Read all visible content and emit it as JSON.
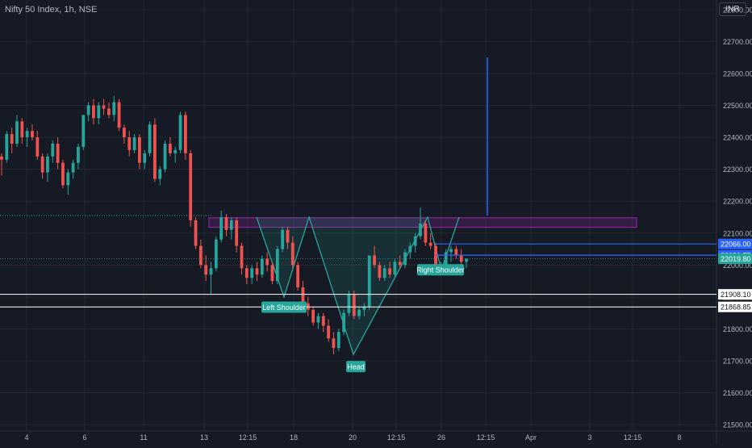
{
  "header": {
    "title": "Nifty 50 Index, 1h, NSE",
    "currency": "INR"
  },
  "colors": {
    "background": "#161a25",
    "grid": "#222631",
    "up": "#26a69a",
    "down": "#ef5350",
    "pattern": "#26a69a",
    "zone": "#9c27b0",
    "blue_line": "#2962ff",
    "axis_text": "#b2b5be"
  },
  "chart_data": {
    "type": "candlestick",
    "ylim": [
      21480,
      22830
    ],
    "y_ticks": [
      "22800.00",
      "22700.00",
      "22600.00",
      "22500.00",
      "22400.00",
      "22300.00",
      "22200.00",
      "22100.00",
      "22000.00",
      "21900.00",
      "21800.00",
      "21700.00",
      "21600.00",
      "21500.00"
    ],
    "x_ticks": [
      "4",
      "6",
      "11",
      "13",
      "12:15",
      "18",
      "20",
      "12:15",
      "26",
      "12:15",
      "Apr",
      "3",
      "12:15",
      "8"
    ],
    "candles": [
      [
        22340,
        22350,
        22280,
        22330
      ],
      [
        22330,
        22420,
        22320,
        22410
      ],
      [
        22410,
        22430,
        22350,
        22380
      ],
      [
        22380,
        22470,
        22370,
        22450
      ],
      [
        22450,
        22460,
        22380,
        22400
      ],
      [
        22400,
        22430,
        22370,
        22420
      ],
      [
        22420,
        22440,
        22390,
        22400
      ],
      [
        22400,
        22420,
        22330,
        22340
      ],
      [
        22340,
        22350,
        22270,
        22290
      ],
      [
        22290,
        22350,
        22260,
        22340
      ],
      [
        22340,
        22390,
        22320,
        22380
      ],
      [
        22380,
        22400,
        22300,
        22320
      ],
      [
        22320,
        22330,
        22240,
        22250
      ],
      [
        22250,
        22300,
        22220,
        22290
      ],
      [
        22290,
        22330,
        22270,
        22320
      ],
      [
        22320,
        22380,
        22300,
        22370
      ],
      [
        22370,
        22470,
        22360,
        22470
      ],
      [
        22470,
        22510,
        22450,
        22500
      ],
      [
        22500,
        22520,
        22440,
        22460
      ],
      [
        22460,
        22510,
        22440,
        22500
      ],
      [
        22500,
        22520,
        22470,
        22490
      ],
      [
        22490,
        22510,
        22460,
        22470
      ],
      [
        22470,
        22530,
        22450,
        22510
      ],
      [
        22510,
        22520,
        22420,
        22430
      ],
      [
        22430,
        22440,
        22380,
        22400
      ],
      [
        22400,
        22420,
        22340,
        22360
      ],
      [
        22360,
        22410,
        22350,
        22400
      ],
      [
        22400,
        22410,
        22300,
        22320
      ],
      [
        22320,
        22360,
        22300,
        22350
      ],
      [
        22350,
        22450,
        22340,
        22440
      ],
      [
        22440,
        22460,
        22260,
        22270
      ],
      [
        22270,
        22310,
        22250,
        22300
      ],
      [
        22300,
        22390,
        22290,
        22380
      ],
      [
        22380,
        22400,
        22340,
        22350
      ],
      [
        22350,
        22370,
        22320,
        22360
      ],
      [
        22360,
        22480,
        22350,
        22470
      ],
      [
        22470,
        22480,
        22330,
        22350
      ],
      [
        22350,
        22360,
        22120,
        22140
      ],
      [
        22140,
        22150,
        22050,
        22060
      ],
      [
        22060,
        22080,
        21990,
        22000
      ],
      [
        22000,
        22030,
        21950,
        21970
      ],
      [
        21970,
        22010,
        21910,
        21990
      ],
      [
        21990,
        22090,
        21980,
        22080
      ],
      [
        22080,
        22170,
        22070,
        22150
      ],
      [
        22150,
        22160,
        22090,
        22110
      ],
      [
        22110,
        22150,
        22080,
        22140
      ],
      [
        22140,
        22150,
        22040,
        22060
      ],
      [
        22060,
        22070,
        21970,
        21990
      ],
      [
        21990,
        22000,
        21940,
        21960
      ],
      [
        21960,
        22000,
        21940,
        21990
      ],
      [
        21990,
        22010,
        21950,
        21970
      ],
      [
        21970,
        22030,
        21960,
        22020
      ],
      [
        22020,
        22040,
        21980,
        22000
      ],
      [
        22000,
        22010,
        21940,
        21950
      ],
      [
        21950,
        22060,
        21940,
        22050
      ],
      [
        22050,
        22120,
        22040,
        22110
      ],
      [
        22110,
        22120,
        22050,
        22070
      ],
      [
        22070,
        22090,
        21990,
        22000
      ],
      [
        22000,
        22010,
        21920,
        21930
      ],
      [
        21930,
        21950,
        21870,
        21880
      ],
      [
        21880,
        21900,
        21840,
        21860
      ],
      [
        21860,
        21870,
        21810,
        21820
      ],
      [
        21820,
        21850,
        21800,
        21840
      ],
      [
        21840,
        21850,
        21790,
        21810
      ],
      [
        21810,
        21830,
        21760,
        21770
      ],
      [
        21770,
        21790,
        21720,
        21740
      ],
      [
        21740,
        21800,
        21730,
        21790
      ],
      [
        21790,
        21860,
        21780,
        21850
      ],
      [
        21850,
        21920,
        21840,
        21910
      ],
      [
        21910,
        21920,
        21830,
        21840
      ],
      [
        21840,
        21870,
        21830,
        21860
      ],
      [
        21860,
        21880,
        21840,
        21870
      ],
      [
        21870,
        22030,
        21860,
        22030
      ],
      [
        22030,
        22060,
        21990,
        22000
      ],
      [
        22000,
        22010,
        21950,
        21960
      ],
      [
        21960,
        22000,
        21950,
        21990
      ],
      [
        21990,
        22010,
        21960,
        21970
      ],
      [
        21970,
        22020,
        21960,
        22010
      ],
      [
        22010,
        22030,
        21990,
        22000
      ],
      [
        22000,
        22050,
        21990,
        22040
      ],
      [
        22040,
        22070,
        22020,
        22060
      ],
      [
        22060,
        22100,
        22040,
        22090
      ],
      [
        22090,
        22180,
        22080,
        22130
      ],
      [
        22130,
        22140,
        22060,
        22070
      ],
      [
        22070,
        22100,
        22050,
        22060
      ],
      [
        22060,
        22070,
        21970,
        21980
      ],
      [
        21980,
        22010,
        21970,
        22000
      ],
      [
        22000,
        22050,
        21990,
        22040
      ],
      [
        22040,
        22060,
        22010,
        22050
      ],
      [
        22050,
        22060,
        22020,
        22030
      ],
      [
        22030,
        22050,
        22000,
        22010
      ],
      [
        22010,
        22020,
        21990,
        22019.8
      ]
    ],
    "levels": [
      {
        "value": 22066.0,
        "label": "22066.00",
        "kind": "blue"
      },
      {
        "value": 22030.75,
        "label": "22030.75",
        "kind": "blue"
      },
      {
        "value": 22019.8,
        "label": "22019.80",
        "kind": "last"
      },
      {
        "value": 21908.1,
        "label": "21908.10",
        "kind": "white"
      },
      {
        "value": 21868.85,
        "label": "21868.85",
        "kind": "white"
      }
    ],
    "annotations": [
      {
        "text": "Left Shoulder"
      },
      {
        "text": "Head"
      },
      {
        "text": "Right Shoulder"
      }
    ]
  }
}
